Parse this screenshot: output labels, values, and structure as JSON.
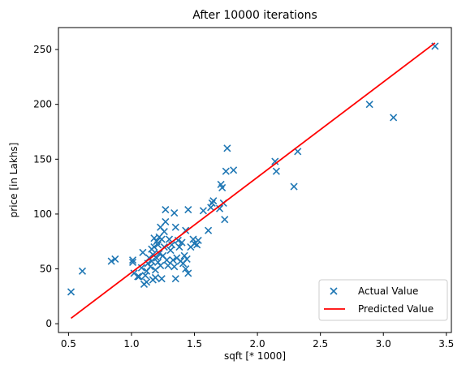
{
  "chart_data": {
    "type": "scatter",
    "title": "After 10000 iterations",
    "xlabel": "sqft [* 1000]",
    "ylabel": "price [in Lakhs]",
    "xlim": [
      0.42,
      3.54
    ],
    "ylim": [
      -8,
      270
    ],
    "xticks": [
      {
        "v": 0.5,
        "label": "0.5"
      },
      {
        "v": 1.0,
        "label": "1.0"
      },
      {
        "v": 1.5,
        "label": "1.5"
      },
      {
        "v": 2.0,
        "label": "2.0"
      },
      {
        "v": 2.5,
        "label": "2.5"
      },
      {
        "v": 3.0,
        "label": "3.0"
      },
      {
        "v": 3.5,
        "label": "3.5"
      }
    ],
    "yticks": [
      {
        "v": 0,
        "label": "0"
      },
      {
        "v": 50,
        "label": "50"
      },
      {
        "v": 100,
        "label": "100"
      },
      {
        "v": 150,
        "label": "150"
      },
      {
        "v": 200,
        "label": "200"
      },
      {
        "v": 250,
        "label": "250"
      }
    ],
    "grid": false,
    "legend_position": "bottom-right",
    "series": [
      {
        "name": "Actual Value",
        "kind": "scatter",
        "marker": "x",
        "color": "#1f77b4",
        "points": [
          [
            0.52,
            29
          ],
          [
            0.61,
            48
          ],
          [
            0.84,
            57
          ],
          [
            0.87,
            59
          ],
          [
            1.01,
            56
          ],
          [
            1.01,
            58
          ],
          [
            1.02,
            46
          ],
          [
            1.05,
            43
          ],
          [
            1.06,
            43
          ],
          [
            1.08,
            51
          ],
          [
            1.09,
            65
          ],
          [
            1.1,
            36
          ],
          [
            1.11,
            44
          ],
          [
            1.12,
            48
          ],
          [
            1.12,
            38
          ],
          [
            1.13,
            55
          ],
          [
            1.14,
            60
          ],
          [
            1.15,
            52
          ],
          [
            1.16,
            57
          ],
          [
            1.16,
            68
          ],
          [
            1.17,
            40
          ],
          [
            1.17,
            63
          ],
          [
            1.18,
            78
          ],
          [
            1.18,
            70
          ],
          [
            1.19,
            49
          ],
          [
            1.19,
            42
          ],
          [
            1.2,
            75
          ],
          [
            1.2,
            60
          ],
          [
            1.21,
            72
          ],
          [
            1.21,
            56
          ],
          [
            1.22,
            64
          ],
          [
            1.22,
            79
          ],
          [
            1.23,
            88
          ],
          [
            1.23,
            53
          ],
          [
            1.24,
            41
          ],
          [
            1.24,
            77
          ],
          [
            1.25,
            62
          ],
          [
            1.26,
            84
          ],
          [
            1.26,
            70
          ],
          [
            1.27,
            93
          ],
          [
            1.27,
            104
          ],
          [
            1.28,
            58
          ],
          [
            1.29,
            53
          ],
          [
            1.3,
            77
          ],
          [
            1.31,
            67
          ],
          [
            1.32,
            72
          ],
          [
            1.33,
            58
          ],
          [
            1.34,
            52
          ],
          [
            1.34,
            101
          ],
          [
            1.35,
            88
          ],
          [
            1.35,
            41
          ],
          [
            1.36,
            60
          ],
          [
            1.37,
            76
          ],
          [
            1.38,
            70
          ],
          [
            1.39,
            57
          ],
          [
            1.4,
            74
          ],
          [
            1.41,
            55
          ],
          [
            1.42,
            62
          ],
          [
            1.43,
            85
          ],
          [
            1.43,
            50
          ],
          [
            1.44,
            59
          ],
          [
            1.45,
            104
          ],
          [
            1.45,
            46
          ],
          [
            1.47,
            70
          ],
          [
            1.49,
            77
          ],
          [
            1.5,
            73
          ],
          [
            1.52,
            72
          ],
          [
            1.53,
            76
          ],
          [
            1.57,
            103
          ],
          [
            1.61,
            85
          ],
          [
            1.63,
            106
          ],
          [
            1.64,
            110
          ],
          [
            1.65,
            112
          ],
          [
            1.7,
            105
          ],
          [
            1.71,
            127
          ],
          [
            1.72,
            124
          ],
          [
            1.73,
            110
          ],
          [
            1.74,
            95
          ],
          [
            1.75,
            139
          ],
          [
            1.76,
            160
          ],
          [
            1.81,
            140
          ],
          [
            2.14,
            148
          ],
          [
            2.15,
            139
          ],
          [
            2.29,
            125
          ],
          [
            2.32,
            157
          ],
          [
            2.89,
            200
          ],
          [
            3.08,
            188
          ],
          [
            3.41,
            253
          ]
        ]
      },
      {
        "name": "Predicted Value",
        "kind": "line",
        "color": "#ff0000",
        "x": [
          0.52,
          3.41
        ],
        "y": [
          5,
          256
        ]
      }
    ]
  }
}
